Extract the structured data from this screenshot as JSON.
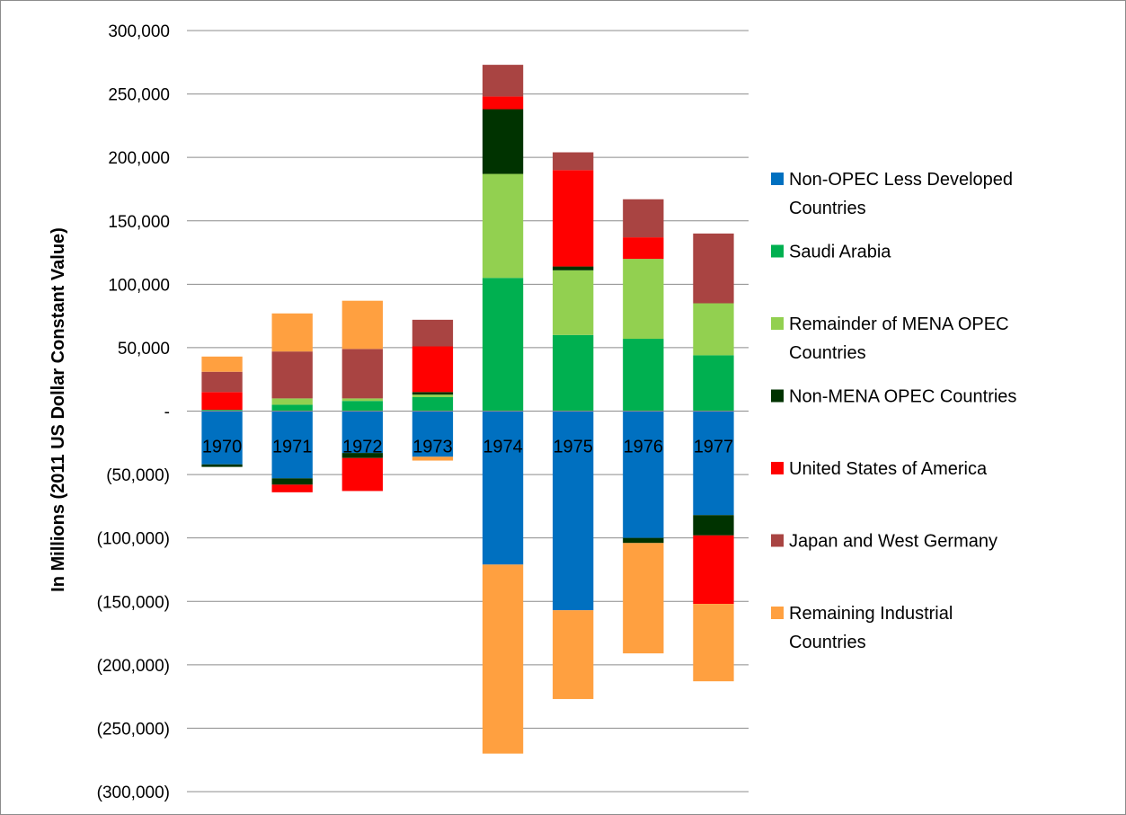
{
  "chart_data": {
    "type": "bar",
    "stacked": true,
    "title": "",
    "xlabel": "",
    "ylabel": "In Millions (2011 US Dollar Constant Value)",
    "ylim": [
      -300000,
      300000
    ],
    "yticks": [
      300000,
      250000,
      200000,
      150000,
      100000,
      50000,
      0,
      -50000,
      -100000,
      -150000,
      -200000,
      -250000,
      -300000
    ],
    "ytick_labels": [
      "300,000",
      "250,000",
      "200,000",
      "150,000",
      "100,000",
      "50,000",
      "-",
      "(50,000)",
      "(100,000)",
      "(150,000)",
      "(200,000)",
      "(250,000)",
      "(300,000)"
    ],
    "grid": true,
    "legend_position": "right",
    "categories": [
      "1970",
      "1971",
      "1972",
      "1973",
      "1974",
      "1975",
      "1976",
      "1977"
    ],
    "series": [
      {
        "name": "Non-OPEC Less Developed Countries",
        "color": "#0070c0",
        "values": [
          -42000,
          -53000,
          -33000,
          -36000,
          -121000,
          -157000,
          -100000,
          -82000
        ]
      },
      {
        "name": "Saudi Arabia",
        "color": "#00b050",
        "values": [
          1000,
          5000,
          8000,
          11000,
          105000,
          60000,
          57000,
          44000
        ]
      },
      {
        "name": "Remainder of MENA OPEC Countries",
        "color": "#92d050",
        "values": [
          0,
          5000,
          2000,
          2000,
          82000,
          51000,
          63000,
          41000
        ]
      },
      {
        "name": "Non-MENA OPEC Countries",
        "color": "#003300",
        "values": [
          -2000,
          -5000,
          -4000,
          2000,
          51000,
          3000,
          -4000,
          -16000
        ]
      },
      {
        "name": "United States of America",
        "color": "#ff0000",
        "values": [
          14000,
          -6000,
          -26000,
          36000,
          10000,
          76000,
          17000,
          -54000
        ]
      },
      {
        "name": "Japan and West Germany",
        "color": "#a94442",
        "values": [
          16000,
          37000,
          39000,
          21000,
          25000,
          14000,
          30000,
          55000
        ]
      },
      {
        "name": "Remaining Industrial Countries",
        "color": "#ffa040",
        "values": [
          12000,
          30000,
          38000,
          -3000,
          -149000,
          -70000,
          -87000,
          -61000
        ]
      }
    ]
  }
}
